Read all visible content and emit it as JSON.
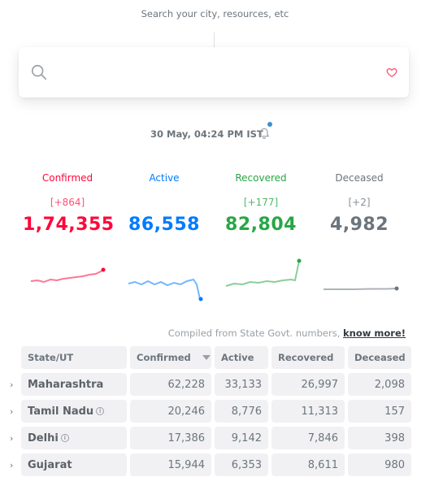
{
  "search": {
    "hint": "Search your city, resources, etc",
    "placeholder": ""
  },
  "header": {
    "timestamp": "30 May, 04:24 PM IST"
  },
  "stats": {
    "confirmed": {
      "label": "Confirmed",
      "delta": "[+864]",
      "value": "1,74,355",
      "color": "#ff073a"
    },
    "active": {
      "label": "Active",
      "delta": "",
      "value": "86,558",
      "color": "#007bff"
    },
    "recovered": {
      "label": "Recovered",
      "delta": "[+177]",
      "value": "82,804",
      "color": "#28a745"
    },
    "deceased": {
      "label": "Deceased",
      "delta": "[+2]",
      "value": "4,982",
      "color": "#6c757d"
    }
  },
  "compiled": {
    "text": "Compiled from State Govt. numbers,",
    "link": "know more!"
  },
  "table": {
    "headers": [
      "State/UT",
      "Confirmed",
      "Active",
      "Recovered",
      "Deceased"
    ],
    "rows": [
      {
        "state": "Maharashtra",
        "info": false,
        "confirmed": "62,228",
        "active": "33,133",
        "recovered": "26,997",
        "deceased": "2,098"
      },
      {
        "state": "Tamil Nadu",
        "info": true,
        "confirmed": "20,246",
        "active": "8,776",
        "recovered": "11,313",
        "deceased": "157"
      },
      {
        "state": "Delhi",
        "info": true,
        "confirmed": "17,386",
        "active": "9,142",
        "recovered": "7,846",
        "deceased": "398"
      },
      {
        "state": "Gujarat",
        "info": false,
        "confirmed": "15,944",
        "active": "6,353",
        "recovered": "8,611",
        "deceased": "980"
      }
    ]
  },
  "icons": {
    "search": "search-icon",
    "heart": "heart-icon",
    "bell": "bell-icon",
    "chevron": "chevron-right-icon",
    "info": "info-icon",
    "sort": "sort-desc-icon"
  }
}
